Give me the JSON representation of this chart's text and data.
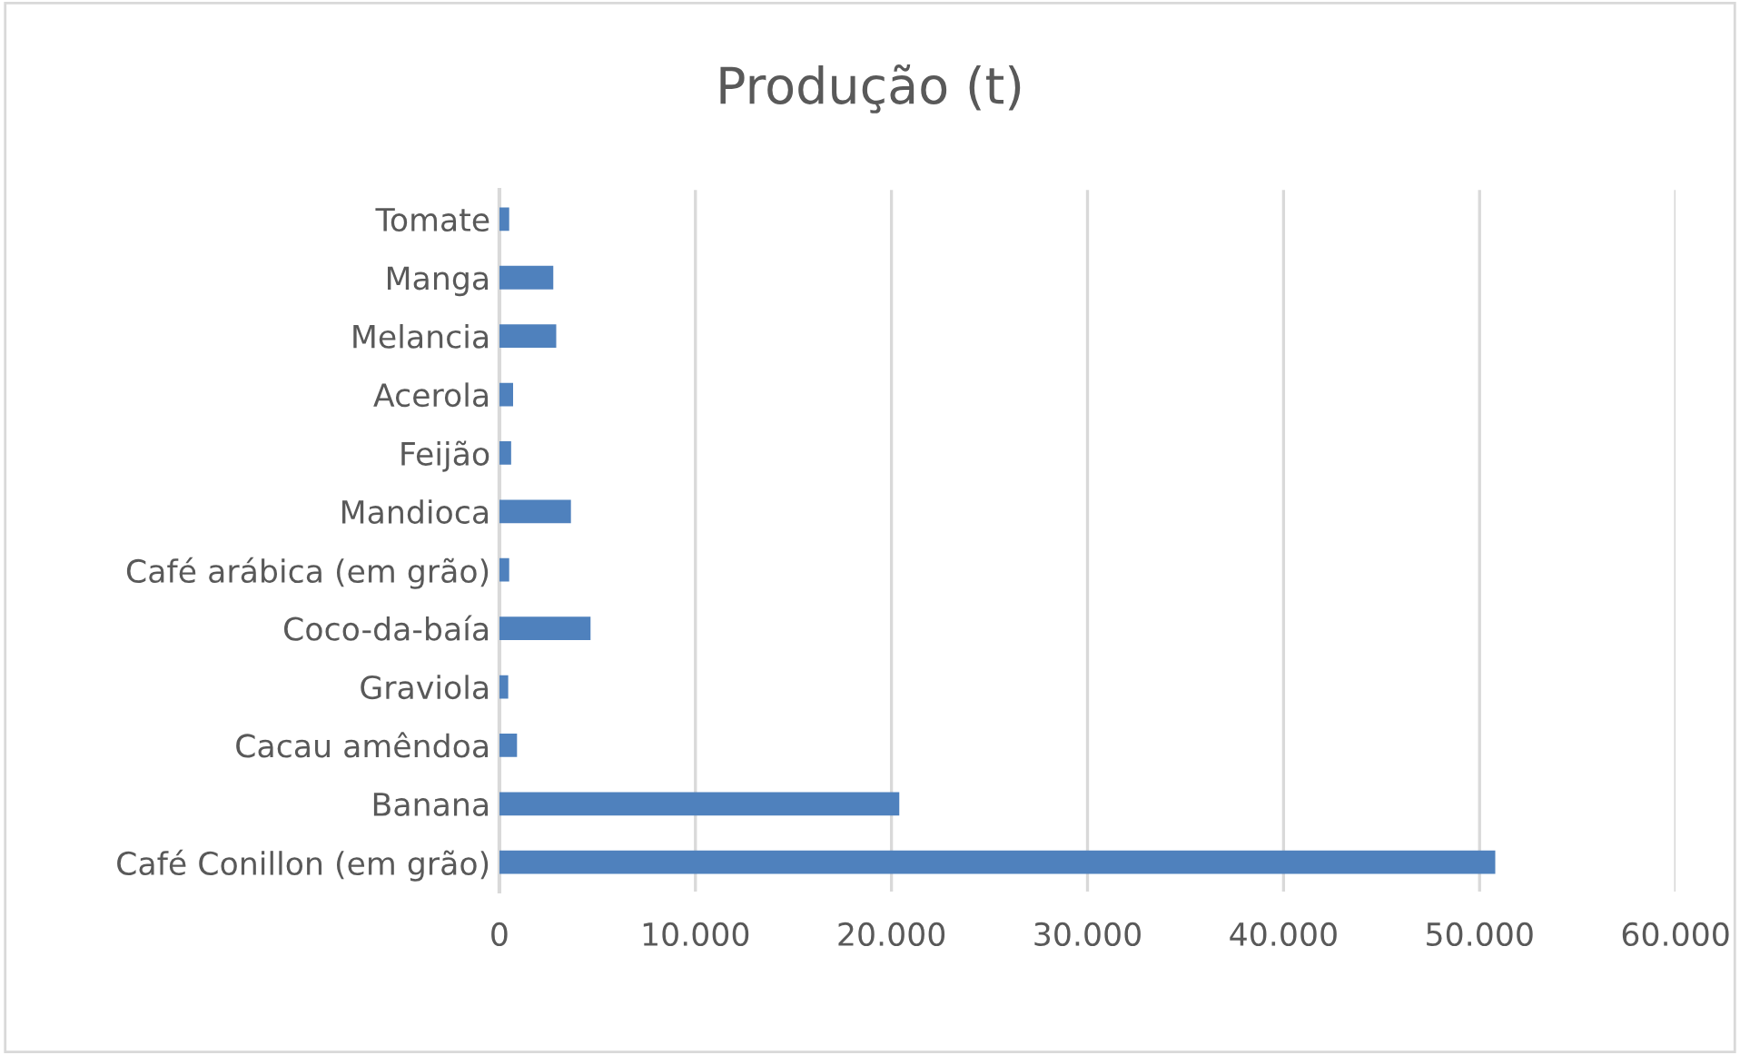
{
  "chart_data": {
    "type": "bar",
    "orientation": "horizontal",
    "title": "Produção (t)",
    "categories": [
      "Tomate",
      "Manga",
      "Melancia",
      "Acerola",
      "Feijão",
      "Mandioca",
      "Café arábica (em grão)",
      "Coco-da-baía",
      "Graviola",
      "Cacau amêndoa",
      "Banana",
      "Café Conillon (em grão)"
    ],
    "values": [
      500,
      2750,
      2900,
      700,
      600,
      3650,
      500,
      4650,
      450,
      900,
      20400,
      50800
    ],
    "color": "#4f81bd",
    "xlim": [
      0,
      60000
    ],
    "xticks": [
      {
        "value": 0,
        "label": "0"
      },
      {
        "value": 10000,
        "label": "10.000"
      },
      {
        "value": 20000,
        "label": "20.000"
      },
      {
        "value": 30000,
        "label": "30.000"
      },
      {
        "value": 40000,
        "label": "40.000"
      },
      {
        "value": 50000,
        "label": "50.000"
      },
      {
        "value": 60000,
        "label": "60.000"
      }
    ],
    "grid": "x",
    "legend": false
  }
}
